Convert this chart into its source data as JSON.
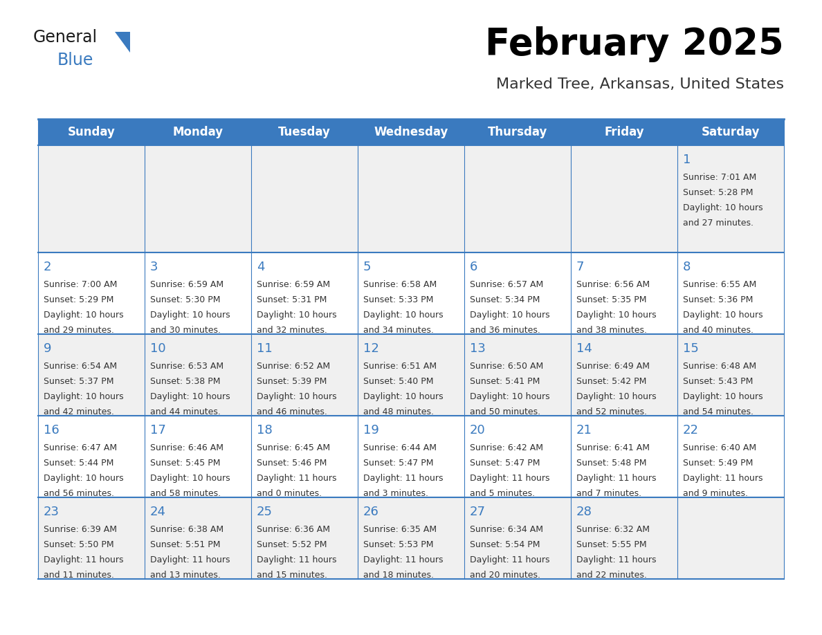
{
  "title": "February 2025",
  "subtitle": "Marked Tree, Arkansas, United States",
  "header_bg": "#3a7abf",
  "header_text": "#ffffff",
  "day_names": [
    "Sunday",
    "Monday",
    "Tuesday",
    "Wednesday",
    "Thursday",
    "Friday",
    "Saturday"
  ],
  "row_bg_even": "#f0f0f0",
  "row_bg_odd": "#ffffff",
  "grid_line_color": "#3a7abf",
  "day_number_color": "#3a7abf",
  "cell_text_color": "#333333",
  "logo_general_color": "#1a1a1a",
  "logo_blue_color": "#3a7abf",
  "logo_triangle_color": "#3a7abf",
  "days": [
    {
      "day": 1,
      "col": 6,
      "row": 0,
      "sunrise": "7:01 AM",
      "sunset": "5:28 PM",
      "daylight_h": "10 hours",
      "daylight_m": "27 minutes."
    },
    {
      "day": 2,
      "col": 0,
      "row": 1,
      "sunrise": "7:00 AM",
      "sunset": "5:29 PM",
      "daylight_h": "10 hours",
      "daylight_m": "29 minutes."
    },
    {
      "day": 3,
      "col": 1,
      "row": 1,
      "sunrise": "6:59 AM",
      "sunset": "5:30 PM",
      "daylight_h": "10 hours",
      "daylight_m": "30 minutes."
    },
    {
      "day": 4,
      "col": 2,
      "row": 1,
      "sunrise": "6:59 AM",
      "sunset": "5:31 PM",
      "daylight_h": "10 hours",
      "daylight_m": "32 minutes."
    },
    {
      "day": 5,
      "col": 3,
      "row": 1,
      "sunrise": "6:58 AM",
      "sunset": "5:33 PM",
      "daylight_h": "10 hours",
      "daylight_m": "34 minutes."
    },
    {
      "day": 6,
      "col": 4,
      "row": 1,
      "sunrise": "6:57 AM",
      "sunset": "5:34 PM",
      "daylight_h": "10 hours",
      "daylight_m": "36 minutes."
    },
    {
      "day": 7,
      "col": 5,
      "row": 1,
      "sunrise": "6:56 AM",
      "sunset": "5:35 PM",
      "daylight_h": "10 hours",
      "daylight_m": "38 minutes."
    },
    {
      "day": 8,
      "col": 6,
      "row": 1,
      "sunrise": "6:55 AM",
      "sunset": "5:36 PM",
      "daylight_h": "10 hours",
      "daylight_m": "40 minutes."
    },
    {
      "day": 9,
      "col": 0,
      "row": 2,
      "sunrise": "6:54 AM",
      "sunset": "5:37 PM",
      "daylight_h": "10 hours",
      "daylight_m": "42 minutes."
    },
    {
      "day": 10,
      "col": 1,
      "row": 2,
      "sunrise": "6:53 AM",
      "sunset": "5:38 PM",
      "daylight_h": "10 hours",
      "daylight_m": "44 minutes."
    },
    {
      "day": 11,
      "col": 2,
      "row": 2,
      "sunrise": "6:52 AM",
      "sunset": "5:39 PM",
      "daylight_h": "10 hours",
      "daylight_m": "46 minutes."
    },
    {
      "day": 12,
      "col": 3,
      "row": 2,
      "sunrise": "6:51 AM",
      "sunset": "5:40 PM",
      "daylight_h": "10 hours",
      "daylight_m": "48 minutes."
    },
    {
      "day": 13,
      "col": 4,
      "row": 2,
      "sunrise": "6:50 AM",
      "sunset": "5:41 PM",
      "daylight_h": "10 hours",
      "daylight_m": "50 minutes."
    },
    {
      "day": 14,
      "col": 5,
      "row": 2,
      "sunrise": "6:49 AM",
      "sunset": "5:42 PM",
      "daylight_h": "10 hours",
      "daylight_m": "52 minutes."
    },
    {
      "day": 15,
      "col": 6,
      "row": 2,
      "sunrise": "6:48 AM",
      "sunset": "5:43 PM",
      "daylight_h": "10 hours",
      "daylight_m": "54 minutes."
    },
    {
      "day": 16,
      "col": 0,
      "row": 3,
      "sunrise": "6:47 AM",
      "sunset": "5:44 PM",
      "daylight_h": "10 hours",
      "daylight_m": "56 minutes."
    },
    {
      "day": 17,
      "col": 1,
      "row": 3,
      "sunrise": "6:46 AM",
      "sunset": "5:45 PM",
      "daylight_h": "10 hours",
      "daylight_m": "58 minutes."
    },
    {
      "day": 18,
      "col": 2,
      "row": 3,
      "sunrise": "6:45 AM",
      "sunset": "5:46 PM",
      "daylight_h": "11 hours",
      "daylight_m": "0 minutes."
    },
    {
      "day": 19,
      "col": 3,
      "row": 3,
      "sunrise": "6:44 AM",
      "sunset": "5:47 PM",
      "daylight_h": "11 hours",
      "daylight_m": "3 minutes."
    },
    {
      "day": 20,
      "col": 4,
      "row": 3,
      "sunrise": "6:42 AM",
      "sunset": "5:47 PM",
      "daylight_h": "11 hours",
      "daylight_m": "5 minutes."
    },
    {
      "day": 21,
      "col": 5,
      "row": 3,
      "sunrise": "6:41 AM",
      "sunset": "5:48 PM",
      "daylight_h": "11 hours",
      "daylight_m": "7 minutes."
    },
    {
      "day": 22,
      "col": 6,
      "row": 3,
      "sunrise": "6:40 AM",
      "sunset": "5:49 PM",
      "daylight_h": "11 hours",
      "daylight_m": "9 minutes."
    },
    {
      "day": 23,
      "col": 0,
      "row": 4,
      "sunrise": "6:39 AM",
      "sunset": "5:50 PM",
      "daylight_h": "11 hours",
      "daylight_m": "11 minutes."
    },
    {
      "day": 24,
      "col": 1,
      "row": 4,
      "sunrise": "6:38 AM",
      "sunset": "5:51 PM",
      "daylight_h": "11 hours",
      "daylight_m": "13 minutes."
    },
    {
      "day": 25,
      "col": 2,
      "row": 4,
      "sunrise": "6:36 AM",
      "sunset": "5:52 PM",
      "daylight_h": "11 hours",
      "daylight_m": "15 minutes."
    },
    {
      "day": 26,
      "col": 3,
      "row": 4,
      "sunrise": "6:35 AM",
      "sunset": "5:53 PM",
      "daylight_h": "11 hours",
      "daylight_m": "18 minutes."
    },
    {
      "day": 27,
      "col": 4,
      "row": 4,
      "sunrise": "6:34 AM",
      "sunset": "5:54 PM",
      "daylight_h": "11 hours",
      "daylight_m": "20 minutes."
    },
    {
      "day": 28,
      "col": 5,
      "row": 4,
      "sunrise": "6:32 AM",
      "sunset": "5:55 PM",
      "daylight_h": "11 hours",
      "daylight_m": "22 minutes."
    }
  ]
}
